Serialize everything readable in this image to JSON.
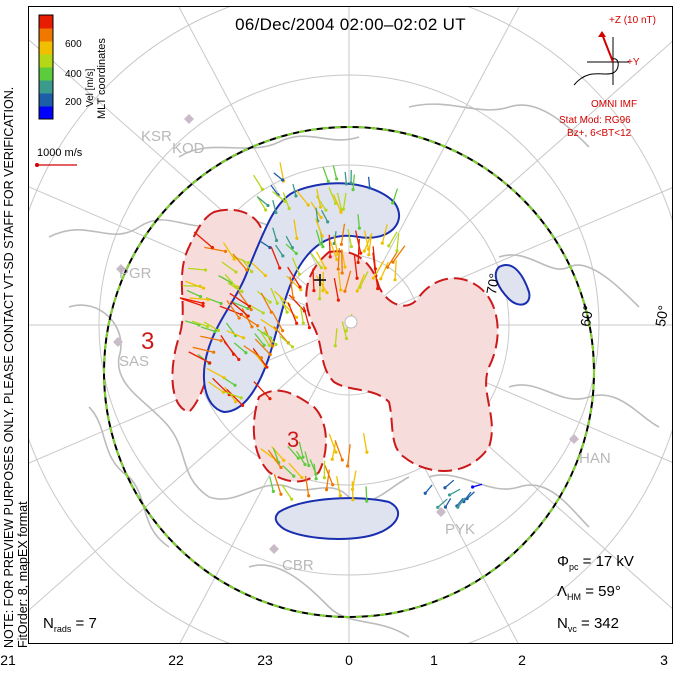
{
  "title": "06/Dec/2004 02:00–02:02 UT",
  "side_note": {
    "line1": "NOTE: FOR PREVIEW PURPOSES ONLY. PLEASE CONTACT VT-SD STAFF FOR VERIFICATION.",
    "line2": "FitOrder: 8, mapEX format"
  },
  "colorbar": {
    "coords_label": "MLT coordinates",
    "unit_label": "Vel [m/s]",
    "ticks": [
      "600",
      "400",
      "200"
    ],
    "colors": [
      "#0000ff",
      "#1c5fa8",
      "#3a9a8c",
      "#5ccc3c",
      "#b4d818",
      "#f0c000",
      "#f07800",
      "#e81c00"
    ]
  },
  "scale_label": "1000 m/s",
  "imf": {
    "z_label": "+Z (10 nT)",
    "y_label": "+Y",
    "source": "OMNI IMF",
    "stat_mod": "Stat Mod: RG96",
    "bins": "Bz+, 6<BT<12"
  },
  "radars": [
    "KSR",
    "KOD",
    "PGR",
    "SAS",
    "HAN",
    "PYK",
    "CBR"
  ],
  "lat_labels": [
    "70°",
    "60°",
    "50°"
  ],
  "x_ticks": [
    "21",
    "22",
    "23",
    "0",
    "1",
    "2",
    "3"
  ],
  "stats": {
    "phi_label": "Φ",
    "phi_sub": "pc",
    "phi_value": "= 17 kV",
    "lambda_label": "Λ",
    "lambda_sub": "HM",
    "lambda_value": "= 59°",
    "nvc_label": "N",
    "nvc_sub": "vc",
    "nvc_value": "= 342",
    "nrads_label": "N",
    "nrads_sub": "rads",
    "nrads_value": "= 7"
  },
  "contour_labels": [
    "3",
    "3"
  ],
  "colors": {
    "positive_fill": "#f7dcdc",
    "positive_line": "#cc1a1a",
    "negative_fill": "#dfe2ef",
    "negative_line": "#1a2fb0",
    "coast": "#bcbcbc",
    "grid": "#c8c8c8",
    "hmb_green": "#7ed32c"
  }
}
